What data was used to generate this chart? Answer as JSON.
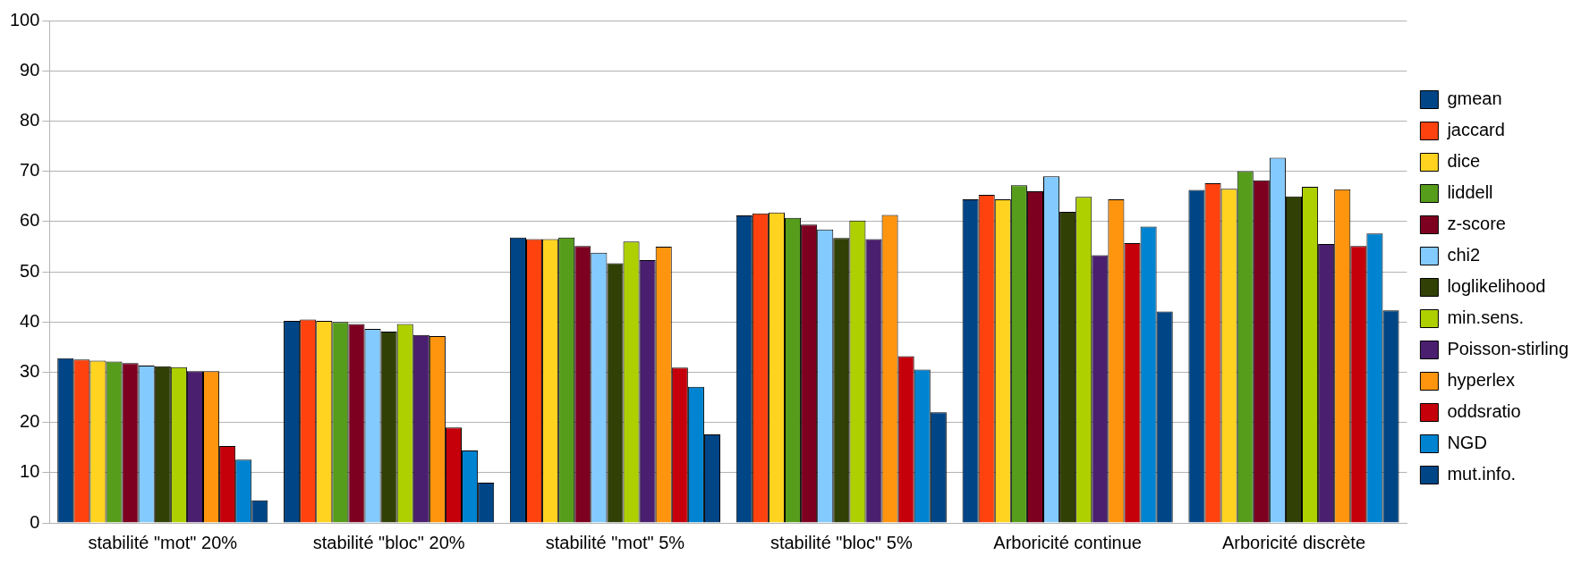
{
  "chart_data": {
    "type": "bar",
    "categories": [
      "stabilité \"mot\" 20%",
      "stabilité \"bloc\" 20%",
      "stabilité \"mot\" 5%",
      "stabilité \"bloc\" 5%",
      "Arboricité continue",
      "Arboricité discrète"
    ],
    "series": [
      {
        "name": "gmean",
        "color": "#004586",
        "values": [
          32.8,
          40.2,
          56.8,
          61.2,
          64.4,
          66.3
        ]
      },
      {
        "name": "jaccard",
        "color": "#ff420e",
        "values": [
          32.5,
          40.5,
          56.5,
          61.6,
          65.3,
          67.6
        ]
      },
      {
        "name": "dice",
        "color": "#ffd320",
        "values": [
          32.3,
          40.2,
          56.5,
          61.8,
          64.4,
          66.5
        ]
      },
      {
        "name": "liddell",
        "color": "#579d1c",
        "values": [
          32.1,
          40.0,
          56.8,
          60.7,
          67.2,
          70.0
        ]
      },
      {
        "name": "z-score",
        "color": "#7e0021",
        "values": [
          31.8,
          39.6,
          55.1,
          59.4,
          66.0,
          68.2
        ]
      },
      {
        "name": "chi2",
        "color": "#83caff",
        "values": [
          31.3,
          38.6,
          53.8,
          58.4,
          69.0,
          72.7
        ]
      },
      {
        "name": "loglikelihood",
        "color": "#314004",
        "values": [
          31.2,
          38.1,
          51.7,
          56.7,
          61.9,
          65.0
        ]
      },
      {
        "name": "min.sens.",
        "color": "#aecf00",
        "values": [
          31.0,
          39.6,
          56.0,
          60.2,
          64.9,
          66.9
        ]
      },
      {
        "name": "Poisson-stirling",
        "color": "#4b1f6f",
        "values": [
          30.2,
          37.4,
          52.3,
          56.5,
          53.3,
          55.5
        ]
      },
      {
        "name": "hyperlex",
        "color": "#ff950e",
        "values": [
          30.2,
          37.2,
          55.0,
          61.3,
          64.4,
          66.4
        ]
      },
      {
        "name": "oddsratio",
        "color": "#c5000b",
        "values": [
          15.3,
          19.0,
          30.9,
          33.2,
          55.7,
          55.1
        ]
      },
      {
        "name": "NGD",
        "color": "#0084d1",
        "values": [
          12.6,
          14.4,
          27.1,
          30.5,
          59.0,
          57.6
        ]
      },
      {
        "name": "mut.info.",
        "color": "#004586",
        "values": [
          4.5,
          8.0,
          17.6,
          22.0,
          42.1,
          42.3
        ]
      }
    ],
    "ylim": [
      0,
      100
    ],
    "yticks": [
      0,
      10,
      20,
      30,
      40,
      50,
      60,
      70,
      80,
      90,
      100
    ],
    "grid": "y",
    "legend": "right"
  }
}
